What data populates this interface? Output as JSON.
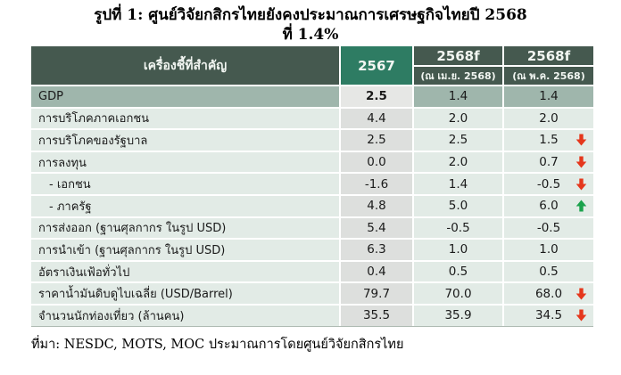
{
  "figure": {
    "title_line1": "รูปที่ 1: ศูนย์วิจัยกสิกรไทยยังคงประมาณการเศรษฐกิจไทยปี 2568",
    "title_line2": "ที่ 1.4%",
    "source": "ที่มา: NESDC, MOTS, MOC ประมาณการโดยศูนย์วิจัยกสิกรไทย"
  },
  "table": {
    "header": {
      "indicator": "เครื่องชี้ที่สำคัญ",
      "year_2567": "2567",
      "apr_label": "2568f",
      "apr_sub": "(ณ เม.ย. 2568)",
      "may_label": "2568f",
      "may_sub": "(ณ พ.ค. 2568)"
    },
    "rows": [
      {
        "label": "GDP",
        "v2567": "2.5",
        "apr": "1.4",
        "may": "1.4",
        "arrow": "none",
        "highlight": true,
        "indent": false,
        "bold2567": true
      },
      {
        "label": "การบริโภคภาคเอกชน",
        "v2567": "4.4",
        "apr": "2.0",
        "may": "2.0",
        "arrow": "none",
        "highlight": false,
        "indent": false,
        "bold2567": false
      },
      {
        "label": "การบริโภคของรัฐบาล",
        "v2567": "2.5",
        "apr": "2.5",
        "may": "1.5",
        "arrow": "down",
        "highlight": false,
        "indent": false,
        "bold2567": false
      },
      {
        "label": "การลงทุน",
        "v2567": "0.0",
        "apr": "2.0",
        "may": "0.7",
        "arrow": "down",
        "highlight": false,
        "indent": false,
        "bold2567": false
      },
      {
        "label": "- เอกชน",
        "v2567": "-1.6",
        "apr": "1.4",
        "may": "-0.5",
        "arrow": "down",
        "highlight": false,
        "indent": true,
        "bold2567": false
      },
      {
        "label": "- ภาครัฐ",
        "v2567": "4.8",
        "apr": "5.0",
        "may": "6.0",
        "arrow": "up",
        "highlight": false,
        "indent": true,
        "bold2567": false
      },
      {
        "label": "การส่งออก (ฐานศุลกากร ในรูป USD)",
        "v2567": "5.4",
        "apr": "-0.5",
        "may": "-0.5",
        "arrow": "none",
        "highlight": false,
        "indent": false,
        "bold2567": false
      },
      {
        "label": "การนำเข้า (ฐานศุลกากร ในรูป USD)",
        "v2567": "6.3",
        "apr": "1.0",
        "may": "1.0",
        "arrow": "none",
        "highlight": false,
        "indent": false,
        "bold2567": false
      },
      {
        "label": "อัตราเงินเฟ้อทั่วไป",
        "v2567": "0.4",
        "apr": "0.5",
        "may": "0.5",
        "arrow": "none",
        "highlight": false,
        "indent": false,
        "bold2567": false
      },
      {
        "label": "ราคาน้ำมันดิบดูไบเฉลี่ย (USD/Barrel)",
        "v2567": "79.7",
        "apr": "70.0",
        "may": "68.0",
        "arrow": "down",
        "highlight": false,
        "indent": false,
        "bold2567": false
      },
      {
        "label": "จำนวนนักท่องเที่ยว (ล้านคน)",
        "v2567": "35.5",
        "apr": "35.9",
        "may": "34.5",
        "arrow": "down",
        "highlight": false,
        "indent": false,
        "bold2567": false
      }
    ]
  },
  "colors": {
    "header_bg": "#45594f",
    "header_year_bg": "#2e7c63",
    "header_text": "#f2f6f2",
    "row_bg": "#e2ebe6",
    "col_2567_bg": "#dddfdd",
    "gdp_row_bg": "#9fb6ac",
    "gdp_2567_bg": "#e6e7e5",
    "arrow_down_red": "#e5371c",
    "arrow_up_green": "#1ba24c",
    "body_text": "#1a1a1a"
  },
  "chart_data": {
    "type": "table",
    "title": "รูปที่ 1: ศูนย์วิจัยกสิกรไทยยังคงประมาณการเศรษฐกิจไทยปี 2568 ที่ 1.4%",
    "columns": [
      "เครื่องชี้ที่สำคัญ",
      "2567",
      "2568f (ณ เม.ย. 2568)",
      "2568f (ณ พ.ค. 2568)"
    ],
    "rows": [
      {
        "indicator": "GDP",
        "y2567": 2.5,
        "f2568_apr": 1.4,
        "f2568_may": 1.4,
        "revision_arrow": null
      },
      {
        "indicator": "การบริโภคภาคเอกชน",
        "y2567": 4.4,
        "f2568_apr": 2.0,
        "f2568_may": 2.0,
        "revision_arrow": null
      },
      {
        "indicator": "การบริโภคของรัฐบาล",
        "y2567": 2.5,
        "f2568_apr": 2.5,
        "f2568_may": 1.5,
        "revision_arrow": "down"
      },
      {
        "indicator": "การลงทุน",
        "y2567": 0.0,
        "f2568_apr": 2.0,
        "f2568_may": 0.7,
        "revision_arrow": "down"
      },
      {
        "indicator": "- เอกชน",
        "y2567": -1.6,
        "f2568_apr": 1.4,
        "f2568_may": -0.5,
        "revision_arrow": "down"
      },
      {
        "indicator": "- ภาครัฐ",
        "y2567": 4.8,
        "f2568_apr": 5.0,
        "f2568_may": 6.0,
        "revision_arrow": "up"
      },
      {
        "indicator": "การส่งออก (ฐานศุลกากร ในรูป USD)",
        "y2567": 5.4,
        "f2568_apr": -0.5,
        "f2568_may": -0.5,
        "revision_arrow": null
      },
      {
        "indicator": "การนำเข้า (ฐานศุลกากร ในรูป USD)",
        "y2567": 6.3,
        "f2568_apr": 1.0,
        "f2568_may": 1.0,
        "revision_arrow": null
      },
      {
        "indicator": "อัตราเงินเฟ้อทั่วไป",
        "y2567": 0.4,
        "f2568_apr": 0.5,
        "f2568_may": 0.5,
        "revision_arrow": null
      },
      {
        "indicator": "ราคาน้ำมันดิบดูไบเฉลี่ย (USD/Barrel)",
        "y2567": 79.7,
        "f2568_apr": 70.0,
        "f2568_may": 68.0,
        "revision_arrow": "down"
      },
      {
        "indicator": "จำนวนนักท่องเที่ยว (ล้านคน)",
        "y2567": 35.5,
        "f2568_apr": 35.9,
        "f2568_may": 34.5,
        "revision_arrow": "down"
      }
    ],
    "source": "ที่มา: NESDC, MOTS, MOC ประมาณการโดยศูนย์วิจัยกสิกรไทย"
  }
}
